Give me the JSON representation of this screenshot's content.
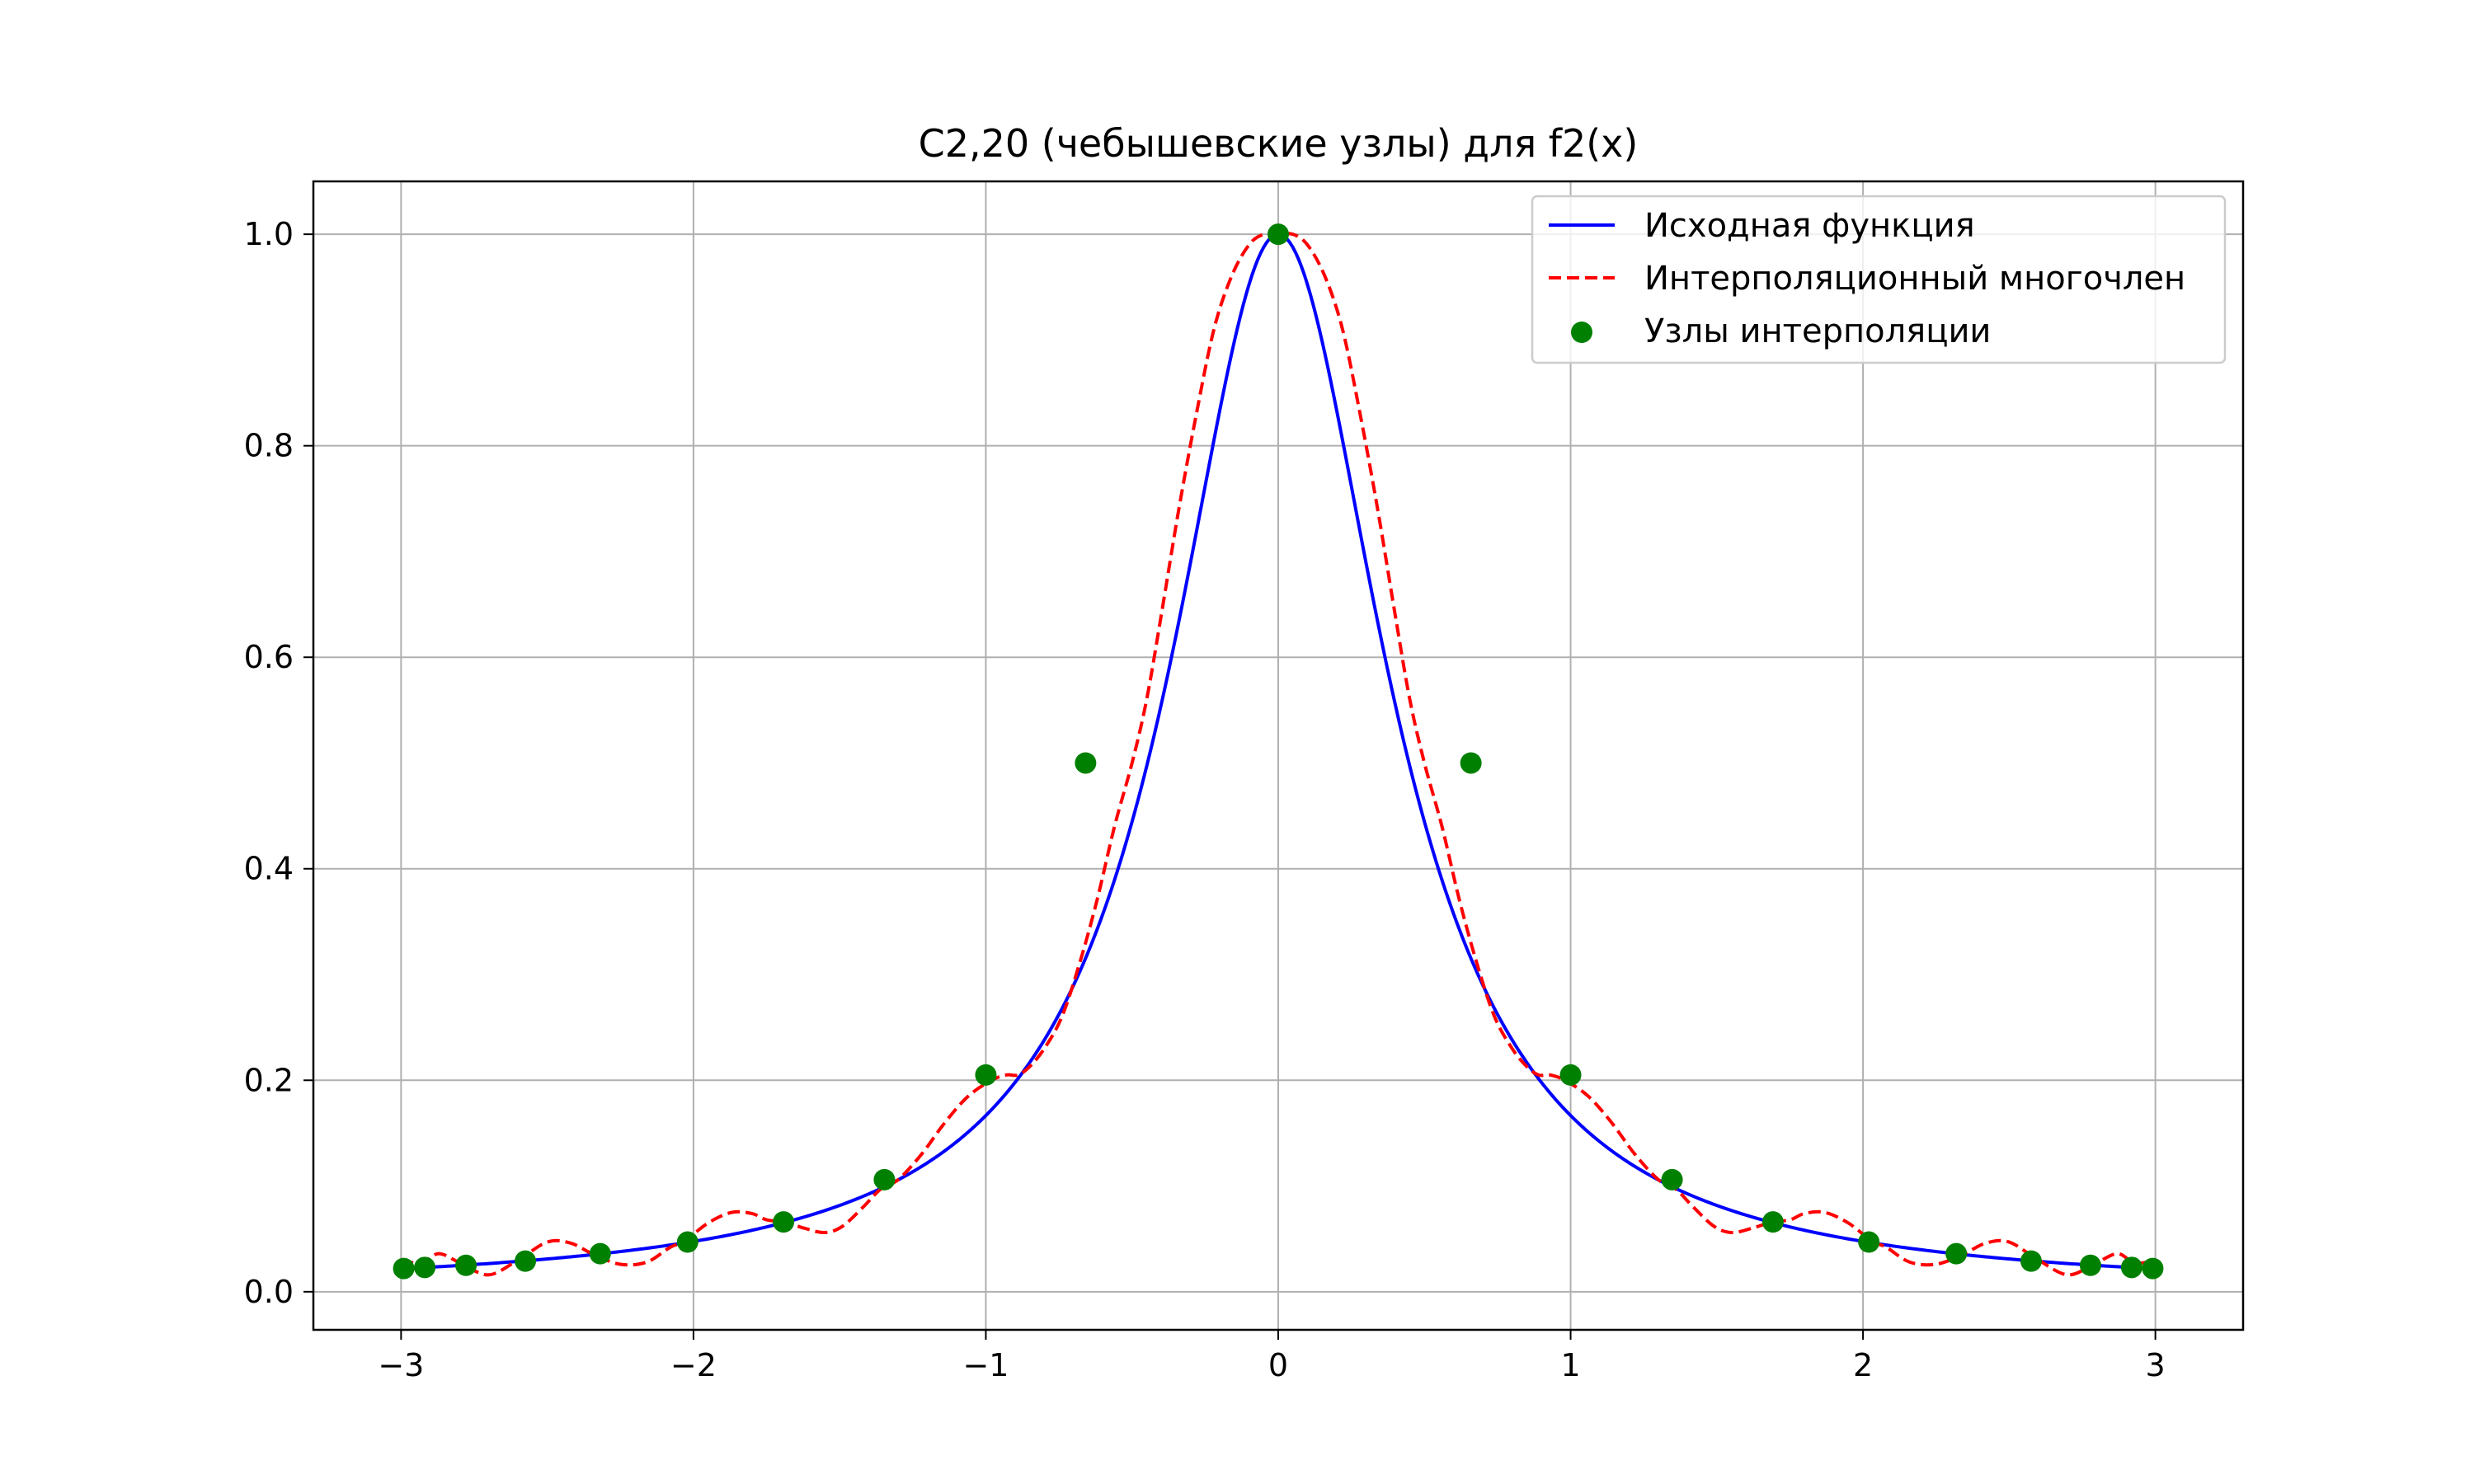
{
  "chart_data": {
    "type": "line",
    "title": "C2,20 (чебышевские узлы) для f2(x)",
    "xlabel": "",
    "ylabel": "",
    "xlim": [
      -3.3,
      3.3
    ],
    "ylim": [
      -0.036,
      1.05
    ],
    "x_ticks": [
      -3,
      -2,
      -1,
      0,
      1,
      2,
      3
    ],
    "x_tick_labels": [
      "−3",
      "−2",
      "−1",
      "0",
      "1",
      "2",
      "3"
    ],
    "y_ticks": [
      0.0,
      0.2,
      0.4,
      0.6,
      0.8,
      1.0
    ],
    "y_tick_labels": [
      "0.0",
      "0.2",
      "0.4",
      "0.6",
      "0.8",
      "1.0"
    ],
    "grid": true,
    "legend_position": "top-right",
    "series": [
      {
        "name": "Исходная функция",
        "style": "solid",
        "color": "#0000ff",
        "function": "1/(1+25*x^2/5)",
        "x_range": [
          -3,
          3
        ]
      },
      {
        "name": "Интерполяционный многочлен",
        "style": "dashed",
        "color": "#ff0000",
        "x": [
          -3.0,
          -2.93,
          -2.87,
          -2.79,
          -2.7,
          -2.6,
          -2.5,
          -2.42,
          -2.34,
          -2.25,
          -2.16,
          -2.08,
          -2.03,
          -1.95,
          -1.87,
          -1.8,
          -1.75,
          -1.69,
          -1.62,
          -1.55,
          -1.49,
          -1.42,
          -1.36,
          -1.3,
          -1.22,
          -1.14,
          -1.06,
          -0.98,
          -0.93,
          -0.89,
          -0.85,
          -0.8,
          -0.74,
          -0.68,
          -0.62,
          -0.56,
          -0.5,
          -0.45,
          -0.4,
          -0.34,
          -0.28,
          -0.22,
          -0.16,
          -0.1,
          -0.05,
          0.0,
          0.05,
          0.1,
          0.16,
          0.22,
          0.28,
          0.34,
          0.4,
          0.45,
          0.5,
          0.56,
          0.62,
          0.68,
          0.74,
          0.8,
          0.85,
          0.89,
          0.93,
          0.98,
          1.06,
          1.14,
          1.22,
          1.3,
          1.36,
          1.42,
          1.49,
          1.55,
          1.62,
          1.69,
          1.75,
          1.8,
          1.87,
          1.95,
          2.03,
          2.08,
          2.16,
          2.25,
          2.34,
          2.42,
          2.5,
          2.6,
          2.7,
          2.79,
          2.87,
          2.93,
          3.0
        ],
        "y": [
          0.03,
          0.027,
          0.036,
          0.026,
          0.016,
          0.03,
          0.047,
          0.046,
          0.035,
          0.026,
          0.028,
          0.042,
          0.048,
          0.065,
          0.075,
          0.074,
          0.068,
          0.066,
          0.06,
          0.056,
          0.062,
          0.08,
          0.097,
          0.106,
          0.13,
          0.16,
          0.185,
          0.2,
          0.205,
          0.205,
          0.213,
          0.23,
          0.26,
          0.31,
          0.37,
          0.44,
          0.5,
          0.56,
          0.64,
          0.74,
          0.83,
          0.91,
          0.96,
          0.99,
          1.0,
          1.0,
          1.0,
          0.99,
          0.96,
          0.91,
          0.83,
          0.74,
          0.64,
          0.56,
          0.5,
          0.44,
          0.37,
          0.31,
          0.26,
          0.23,
          0.213,
          0.205,
          0.205,
          0.2,
          0.185,
          0.16,
          0.13,
          0.106,
          0.097,
          0.08,
          0.062,
          0.056,
          0.06,
          0.066,
          0.068,
          0.074,
          0.075,
          0.065,
          0.048,
          0.042,
          0.028,
          0.026,
          0.035,
          0.046,
          0.047,
          0.03,
          0.016,
          0.026,
          0.036,
          0.027,
          0.03
        ]
      },
      {
        "name": "Узлы интерполяции",
        "style": "scatter",
        "color": "#008000",
        "x": [
          -2.991,
          -2.919,
          -2.778,
          -2.575,
          -2.319,
          -2.02,
          -1.692,
          -1.347,
          -1.0,
          -0.659,
          0.0,
          0.659,
          1.0,
          1.347,
          1.692,
          2.02,
          2.319,
          2.575,
          2.778,
          2.919,
          2.991
        ],
        "y": [
          0.022,
          0.023,
          0.025,
          0.029,
          0.036,
          0.047,
          0.066,
          0.106,
          0.205,
          0.5,
          1.0,
          0.5,
          0.205,
          0.106,
          0.066,
          0.047,
          0.036,
          0.029,
          0.025,
          0.023,
          0.022
        ]
      }
    ]
  },
  "colors": {
    "function_line": "#0000ff",
    "poly_line": "#ff0000",
    "nodes": "#008000",
    "grid": "#b0b0b0"
  }
}
